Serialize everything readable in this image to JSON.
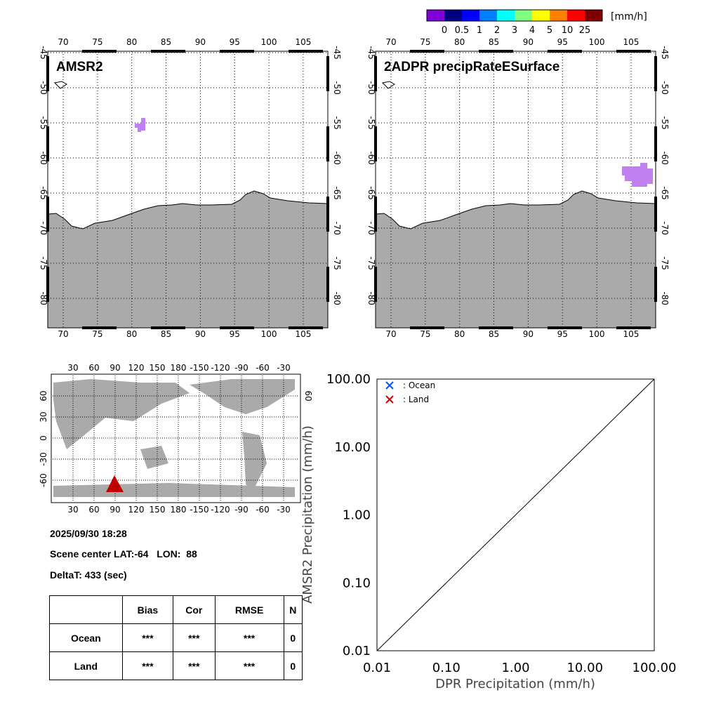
{
  "colorbar": {
    "unit": "[mm/h]",
    "labels": [
      "0",
      "0.5",
      "1",
      "2",
      "3",
      "4",
      "5",
      "10",
      "25"
    ],
    "colors": [
      "#8000d8",
      "#000080",
      "#0000ff",
      "#0080ff",
      "#00ffff",
      "#80ff80",
      "#ffff00",
      "#ff8000",
      "#ff0000",
      "#800000"
    ]
  },
  "panels": [
    {
      "title": "AMSR2"
    },
    {
      "title": "2ADPR precipRateESurface"
    }
  ],
  "map": {
    "lon_ticks": [
      "70",
      "75",
      "80",
      "85",
      "90",
      "95",
      "100",
      "105"
    ],
    "lat_ticks": [
      "-45",
      "-50",
      "-55",
      "-60",
      "-65",
      "-70",
      "-75",
      "-80"
    ],
    "land_color": "#aaaaaa",
    "rain_color": "#c080f0"
  },
  "world": {
    "lon_ticks": [
      "30",
      "60",
      "90",
      "120",
      "150",
      "180",
      "-150",
      "-120",
      "-90",
      "-60",
      "-30"
    ],
    "lat_ticks": [
      "60",
      "30",
      "0",
      "-30",
      "-60"
    ],
    "marker_color": "#c00000"
  },
  "info": {
    "datetime": "2025/09/30 18:28",
    "scene": "Scene center LAT:-64   LON:  88",
    "deltat": "DeltaT:  433 (sec)"
  },
  "stats": {
    "headers": [
      "",
      "Bias",
      "Cor",
      "RMSE",
      "N"
    ],
    "rows": [
      [
        "Ocean",
        "***",
        "***",
        "***",
        "0"
      ],
      [
        "Land",
        "***",
        "***",
        "***",
        "0"
      ]
    ]
  },
  "chart_data": {
    "type": "scatter",
    "xlabel": "DPR Precipitation (mm/h)",
    "ylabel": "AMSR2 Precipitation (mm/h)",
    "xlim": [
      0.01,
      100
    ],
    "ylim": [
      0.01,
      100
    ],
    "scale": "log",
    "x_ticks": [
      "0.01",
      "0.10",
      "1.00",
      "10.00",
      "100.00"
    ],
    "y_ticks": [
      "0.01",
      "0.10",
      "1.00",
      "10.00",
      "100.00"
    ],
    "legend": [
      {
        "label": ": Ocean",
        "color": "#0050ff"
      },
      {
        "label": ": Land",
        "color": "#d00000"
      }
    ],
    "legend_position": "top-left",
    "series": [
      {
        "name": "Ocean",
        "points": []
      },
      {
        "name": "Land",
        "points": []
      }
    ],
    "reference_line": "1:1"
  }
}
